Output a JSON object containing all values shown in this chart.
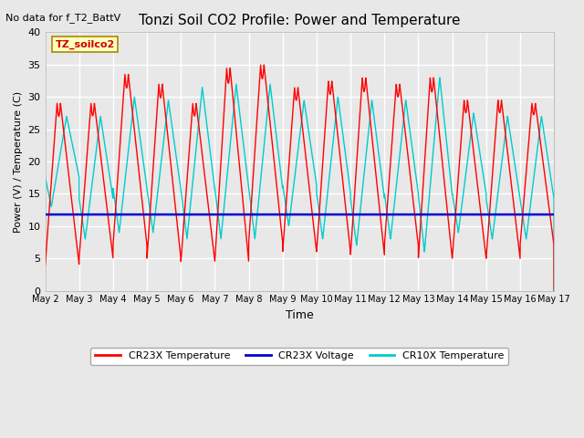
{
  "title": "Tonzi Soil CO2 Profile: Power and Temperature",
  "subtitle": "No data for f_T2_BattV",
  "xlabel": "Time",
  "ylabel": "Power (V) / Temperature (C)",
  "ylim": [
    0,
    40
  ],
  "yticks": [
    0,
    5,
    10,
    15,
    20,
    25,
    30,
    35,
    40
  ],
  "x_tick_labels": [
    "May 2",
    "May 3",
    "May 4",
    "May 5",
    "May 6",
    "May 7",
    "May 8",
    "May 9",
    "May 10",
    "May 11",
    "May 12",
    "May 13",
    "May 14",
    "May 15",
    "May 16",
    "May 17"
  ],
  "annotation_label": "TZ_soilco2",
  "annotation_box_color": "#FFFFC0",
  "annotation_box_edge": "#AA8800",
  "cr23x_temp_color": "#FF0000",
  "cr23x_volt_color": "#0000CC",
  "cr10x_temp_color": "#00CCCC",
  "bg_color": "#E8E8E8",
  "plot_bg_color": "#E8E8E8",
  "grid_color": "#FFFFFF",
  "legend_labels": [
    "CR23X Temperature",
    "CR23X Voltage",
    "CR10X Temperature"
  ],
  "cr23x_volt_value": 11.8,
  "num_days": 15
}
